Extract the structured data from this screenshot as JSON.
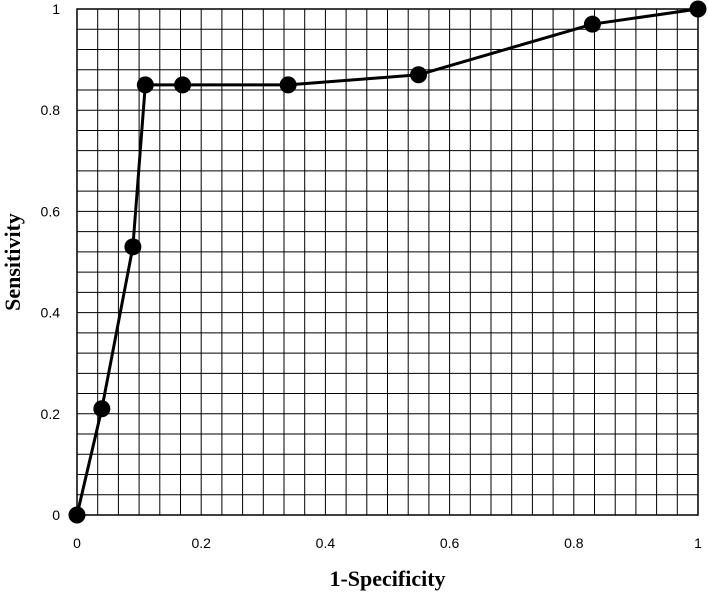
{
  "chart_data": {
    "type": "line",
    "title": "",
    "xlabel": "1-Specificity",
    "ylabel": "Sensitivity",
    "xlim": [
      0,
      1
    ],
    "ylim": [
      0,
      1
    ],
    "grid": true,
    "legend": "none",
    "x_ticks": [
      0,
      0.2,
      0.4,
      0.6,
      0.8,
      1
    ],
    "y_ticks": [
      0,
      0.2,
      0.4,
      0.6,
      0.8,
      1
    ],
    "x_tick_labels": [
      "0",
      "0.2",
      "0.4",
      "0.6",
      "0.8",
      "1"
    ],
    "y_tick_labels": [
      "0",
      "0.2",
      "0.4",
      "0.6",
      "0.8",
      "1"
    ],
    "series": [
      {
        "x": [
          0,
          0.04,
          0.09,
          0.11,
          0.17,
          0.34,
          0.55,
          0.83,
          1.0
        ],
        "y": [
          0,
          0.21,
          0.53,
          0.85,
          0.85,
          0.85,
          0.87,
          0.97,
          1.0
        ],
        "color": "#000000",
        "marker": "circle"
      }
    ]
  }
}
